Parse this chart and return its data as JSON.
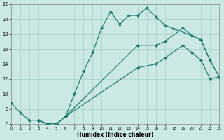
{
  "xlabel": "Humidex (Indice chaleur)",
  "background_color": "#cce8e4",
  "grid_color": "#aad4cc",
  "line_color": "#1a7a6e",
  "xlim": [
    0,
    23
  ],
  "ylim": [
    6,
    22
  ],
  "xticks": [
    0,
    1,
    2,
    3,
    4,
    5,
    6,
    7,
    8,
    9,
    10,
    11,
    12,
    13,
    14,
    15,
    16,
    17,
    18,
    19,
    20,
    21,
    22,
    23
  ],
  "yticks": [
    6,
    8,
    10,
    12,
    14,
    16,
    18,
    20,
    22
  ],
  "line1_x": [
    0,
    1,
    2,
    3,
    4,
    5,
    6,
    7,
    8,
    9,
    10,
    11,
    12,
    13,
    14,
    15,
    16,
    17,
    18,
    20,
    21,
    22,
    23
  ],
  "line1_y": [
    8.8,
    7.5,
    6.5,
    6.5,
    6.0,
    6.0,
    7.0,
    10.0,
    13.0,
    15.5,
    18.8,
    21.0,
    19.3,
    20.5,
    20.5,
    21.5,
    20.3,
    19.2,
    18.7,
    17.8,
    17.2,
    14.5,
    12.3
  ],
  "line2_x": [
    3,
    4,
    5,
    6,
    14,
    16,
    17,
    19,
    20,
    21,
    22,
    23
  ],
  "line2_y": [
    6.5,
    6.0,
    6.0,
    7.0,
    16.5,
    16.5,
    17.0,
    18.8,
    17.8,
    17.2,
    14.5,
    12.3
  ],
  "line3_x": [
    3,
    4,
    5,
    6,
    14,
    16,
    17,
    19,
    20,
    21,
    22,
    23
  ],
  "line3_y": [
    6.5,
    6.0,
    6.0,
    7.0,
    13.5,
    14.0,
    14.8,
    16.5,
    15.5,
    14.5,
    12.0,
    12.3
  ]
}
